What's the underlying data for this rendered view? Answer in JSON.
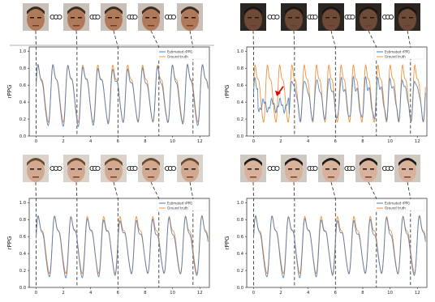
{
  "panels": [
    {
      "id": "top-left",
      "skin": "#b07a5a",
      "hair": "#3a2a22",
      "bg": "#c9c1b8",
      "cycles": 11.5,
      "noise": 0.0,
      "ylabel": "rPPG",
      "legend": [
        "Estimated rPPG",
        "Ground truth"
      ],
      "annotation_arrow": false
    },
    {
      "id": "top-right",
      "skin": "#6e4a38",
      "hair": "#1c1410",
      "bg": "#2b2622",
      "cycles": 14,
      "noise": 1.0,
      "ylabel": "rPPG",
      "legend": [
        "Estimated rPPG",
        "Ground truth"
      ],
      "annotation_arrow": true
    },
    {
      "id": "bottom-left",
      "skin": "#d2a890",
      "hair": "#6b4a2e",
      "bg": "#d9d3cb",
      "cycles": 10.5,
      "noise": 0.0,
      "ylabel": "rPPG",
      "legend": [
        "Estimated rPPG",
        "Ground truth"
      ],
      "annotation_arrow": false
    },
    {
      "id": "bottom-right",
      "skin": "#d8b29a",
      "hair": "#1e1a18",
      "bg": "#cfc9c2",
      "cycles": 10.5,
      "noise": 0.0,
      "ylabel": "rPPG",
      "legend": [
        "Estimated rPPG",
        "Ground truth"
      ],
      "annotation_arrow": false
    }
  ],
  "chart_data": [
    {
      "type": "line",
      "ylabel": "rPPG",
      "xlim": [
        -0.5,
        12.7
      ],
      "ylim": [
        0.0,
        1.05
      ],
      "x_ticks": [
        "0",
        "2",
        "4",
        "6",
        "8",
        "10",
        "12"
      ],
      "y_ticks": [
        "0.0",
        "0.2",
        "0.4",
        "0.6",
        "0.8",
        "1.0"
      ],
      "segment_boundaries": [
        0,
        3,
        6,
        9,
        11.5
      ],
      "series": [
        {
          "name": "Estimated rPPG",
          "color": "#4a7bb5"
        },
        {
          "name": "Ground truth",
          "color": "#f0913c"
        }
      ]
    },
    {
      "type": "line",
      "ylabel": "rPPG",
      "xlim": [
        -0.5,
        12.7
      ],
      "ylim": [
        0.0,
        1.05
      ],
      "x_ticks": [
        "0",
        "2",
        "4",
        "6",
        "8",
        "10",
        "12"
      ],
      "y_ticks": [
        "0.0",
        "0.2",
        "0.4",
        "0.6",
        "0.8",
        "1.0"
      ],
      "segment_boundaries": [
        0,
        3,
        6,
        9,
        11.5
      ],
      "series": [
        {
          "name": "Estimated rPPG",
          "color": "#4a7bb5"
        },
        {
          "name": "Ground truth",
          "color": "#f0913c"
        }
      ]
    },
    {
      "type": "line",
      "ylabel": "rPPG",
      "xlim": [
        -0.5,
        12.7
      ],
      "ylim": [
        0.0,
        1.05
      ],
      "x_ticks": [
        "0",
        "2",
        "4",
        "6",
        "8",
        "10",
        "12"
      ],
      "y_ticks": [
        "0.0",
        "0.2",
        "0.4",
        "0.6",
        "0.8",
        "1.0"
      ],
      "segment_boundaries": [
        0,
        3,
        6,
        9,
        11.5
      ],
      "series": [
        {
          "name": "Estimated rPPG",
          "color": "#4a7bb5"
        },
        {
          "name": "Ground truth",
          "color": "#f0913c"
        }
      ]
    },
    {
      "type": "line",
      "ylabel": "rPPG",
      "xlim": [
        -0.5,
        12.7
      ],
      "ylim": [
        0.0,
        1.05
      ],
      "x_ticks": [
        "0",
        "2",
        "4",
        "6",
        "8",
        "10",
        "12"
      ],
      "y_ticks": [
        "0.0",
        "0.2",
        "0.4",
        "0.6",
        "0.8",
        "1.0"
      ],
      "segment_boundaries": [
        0,
        3,
        6,
        9,
        11.5
      ],
      "series": [
        {
          "name": "Estimated rPPG",
          "color": "#4a7bb5"
        },
        {
          "name": "Ground truth",
          "color": "#f0913c"
        }
      ]
    }
  ]
}
